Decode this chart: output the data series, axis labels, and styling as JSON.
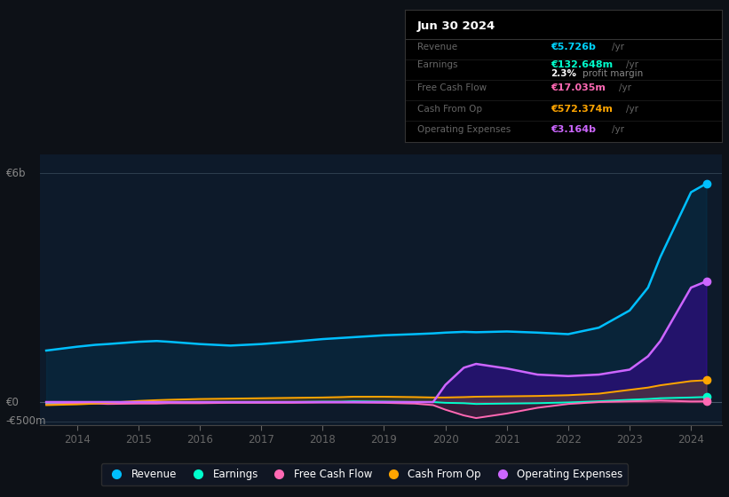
{
  "bg_color": "#0d1117",
  "chart_bg": "#0d1a2a",
  "title": "Jun 30 2024",
  "table_rows": [
    {
      "label": "Revenue",
      "value": "€5.726b",
      "unit": "/yr",
      "val_color": "#00d4ff",
      "extra": null
    },
    {
      "label": "Earnings",
      "value": "€132.648m",
      "unit": "/yr",
      "val_color": "#00ffcc",
      "extra": {
        "val": "2.3%",
        "text": "profit margin"
      }
    },
    {
      "label": "Free Cash Flow",
      "value": "€17.035m",
      "unit": "/yr",
      "val_color": "#ff69b4",
      "extra": null
    },
    {
      "label": "Cash From Op",
      "value": "€572.374m",
      "unit": "/yr",
      "val_color": "#ffa500",
      "extra": null
    },
    {
      "label": "Operating Expenses",
      "value": "€3.164b",
      "unit": "/yr",
      "val_color": "#cc66ff",
      "extra": null
    }
  ],
  "years": [
    2013.5,
    2014.0,
    2014.3,
    2014.5,
    2015.0,
    2015.3,
    2015.5,
    2016.0,
    2016.5,
    2017.0,
    2017.5,
    2018.0,
    2018.3,
    2018.5,
    2019.0,
    2019.5,
    2019.8,
    2020.0,
    2020.3,
    2020.5,
    2021.0,
    2021.5,
    2022.0,
    2022.5,
    2023.0,
    2023.3,
    2023.5,
    2024.0,
    2024.25
  ],
  "revenue": [
    1.35,
    1.45,
    1.5,
    1.52,
    1.58,
    1.6,
    1.58,
    1.52,
    1.48,
    1.52,
    1.58,
    1.65,
    1.68,
    1.7,
    1.75,
    1.78,
    1.8,
    1.82,
    1.84,
    1.83,
    1.85,
    1.82,
    1.78,
    1.95,
    2.4,
    3.0,
    3.8,
    5.5,
    5.726
  ],
  "earnings": [
    -0.04,
    -0.03,
    -0.02,
    -0.01,
    -0.01,
    0.0,
    0.0,
    -0.01,
    -0.01,
    -0.01,
    0.0,
    0.01,
    0.01,
    0.02,
    0.01,
    0.0,
    0.0,
    -0.02,
    -0.03,
    -0.05,
    -0.04,
    -0.03,
    -0.01,
    0.02,
    0.06,
    0.08,
    0.1,
    0.12,
    0.133
  ],
  "free_cash_flow": [
    -0.06,
    -0.04,
    -0.04,
    -0.05,
    -0.04,
    -0.04,
    -0.03,
    -0.03,
    -0.02,
    -0.02,
    -0.02,
    -0.01,
    -0.01,
    -0.01,
    -0.02,
    -0.04,
    -0.08,
    -0.2,
    -0.35,
    -0.42,
    -0.3,
    -0.15,
    -0.05,
    0.0,
    0.02,
    0.03,
    0.04,
    0.015,
    0.017
  ],
  "cash_from_op": [
    -0.08,
    -0.06,
    -0.04,
    -0.02,
    0.03,
    0.05,
    0.06,
    0.08,
    0.09,
    0.1,
    0.11,
    0.12,
    0.13,
    0.14,
    0.14,
    0.13,
    0.12,
    0.12,
    0.13,
    0.14,
    0.15,
    0.16,
    0.18,
    0.22,
    0.32,
    0.38,
    0.44,
    0.55,
    0.572
  ],
  "operating_expenses": [
    0.0,
    0.0,
    0.0,
    0.0,
    0.0,
    0.0,
    0.0,
    0.0,
    0.0,
    0.0,
    0.0,
    0.0,
    0.0,
    0.0,
    0.0,
    0.0,
    0.0,
    0.45,
    0.9,
    1.0,
    0.88,
    0.72,
    0.68,
    0.72,
    0.85,
    1.2,
    1.6,
    3.0,
    3.164
  ],
  "xlim": [
    2013.4,
    2024.5
  ],
  "ylim": [
    -0.6,
    6.5
  ],
  "y_zero": 0.0,
  "y_top": 6.0,
  "y_neg500": -0.5,
  "ytop_label": "€6b",
  "yzero_label": "€0",
  "yneg_label": "-€500m",
  "xticks": [
    2014,
    2015,
    2016,
    2017,
    2018,
    2019,
    2020,
    2021,
    2022,
    2023,
    2024
  ],
  "legend_labels": [
    "Revenue",
    "Earnings",
    "Free Cash Flow",
    "Cash From Op",
    "Operating Expenses"
  ],
  "legend_colors": [
    "#00bfff",
    "#00ffcc",
    "#ff69b4",
    "#ffa500",
    "#cc66ff"
  ],
  "line_colors": {
    "revenue": "#00bfff",
    "earnings": "#00ffcc",
    "free_cash_flow": "#ff69b4",
    "cash_from_op": "#ffa500",
    "operating_expenses": "#cc66ff"
  },
  "fill_alphas": {
    "revenue": 0.25,
    "operating_expenses": 0.45,
    "cash_from_op": 0.3,
    "free_cash_flow": 0.25
  },
  "fill_colors": {
    "revenue": "#004466",
    "operating_expenses": "#4400aa",
    "cash_from_op": "#996600",
    "free_cash_flow": "#aa2266"
  }
}
